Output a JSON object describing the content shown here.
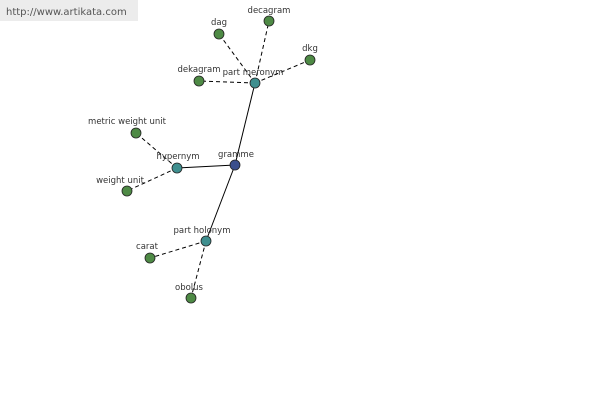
{
  "header": {
    "url": "http://www.artikata.com"
  },
  "nodes": [
    {
      "label": "gramme"
    },
    {
      "label": "part meronym"
    },
    {
      "label": "hypernym"
    },
    {
      "label": "part holonym"
    },
    {
      "label": "dag"
    },
    {
      "label": "decagram"
    },
    {
      "label": "dkg"
    },
    {
      "label": "dekagram"
    },
    {
      "label": "metric weight unit"
    },
    {
      "label": "weight unit"
    },
    {
      "label": "carat"
    },
    {
      "label": "obolus"
    }
  ]
}
